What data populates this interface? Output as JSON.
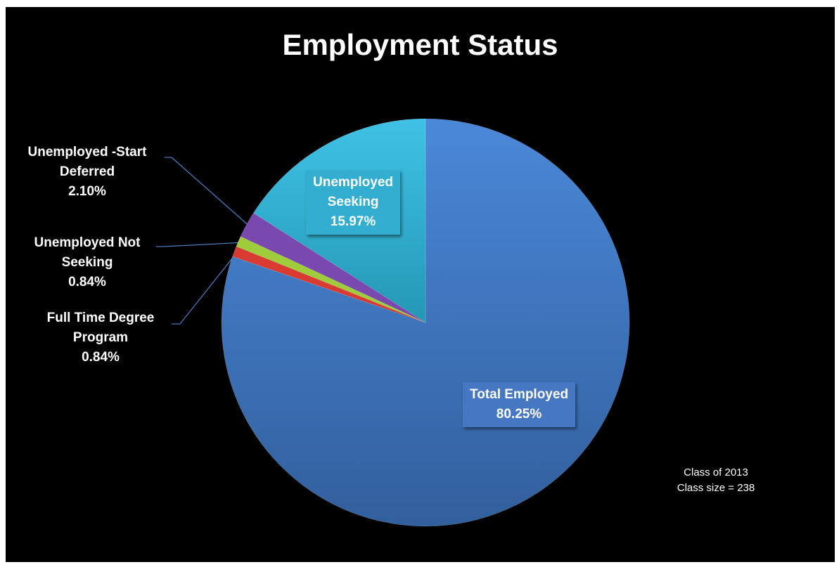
{
  "chart_data": {
    "type": "pie",
    "title": "Employment Status",
    "slices": [
      {
        "name": "Total Employed",
        "label_lines": [
          "Total Employed"
        ],
        "value": 80.25,
        "value_label": "80.25%",
        "color": "#3f72bf",
        "color_light": "#4a88d8",
        "color_dark": "#325f9d",
        "label_bg": "#4577c2"
      },
      {
        "name": "Full Time Degree Program",
        "label_lines": [
          "Full Time Degree",
          "Program"
        ],
        "value": 0.84,
        "value_label": "0.84%",
        "color": "#d93a32"
      },
      {
        "name": "Unemployed Not Seeking",
        "label_lines": [
          "Unemployed Not",
          "Seeking"
        ],
        "value": 0.84,
        "value_label": "0.84%",
        "color": "#9fcc3b"
      },
      {
        "name": "Unemployed -Start Deferred",
        "label_lines": [
          "Unemployed -Start",
          "Deferred"
        ],
        "value": 2.1,
        "value_label": "2.10%",
        "color": "#7a49b0"
      },
      {
        "name": "Unemployed Seeking",
        "label_lines": [
          "Unemployed",
          "Seeking"
        ],
        "value": 15.97,
        "value_label": "15.97%",
        "color": "#2eb0d6",
        "color_light": "#3fc2e6",
        "color_dark": "#2497b4",
        "label_bg": "#33aed0"
      }
    ]
  },
  "notes": {
    "class_year": "Class of 2013",
    "class_size": "Class size = 238"
  }
}
